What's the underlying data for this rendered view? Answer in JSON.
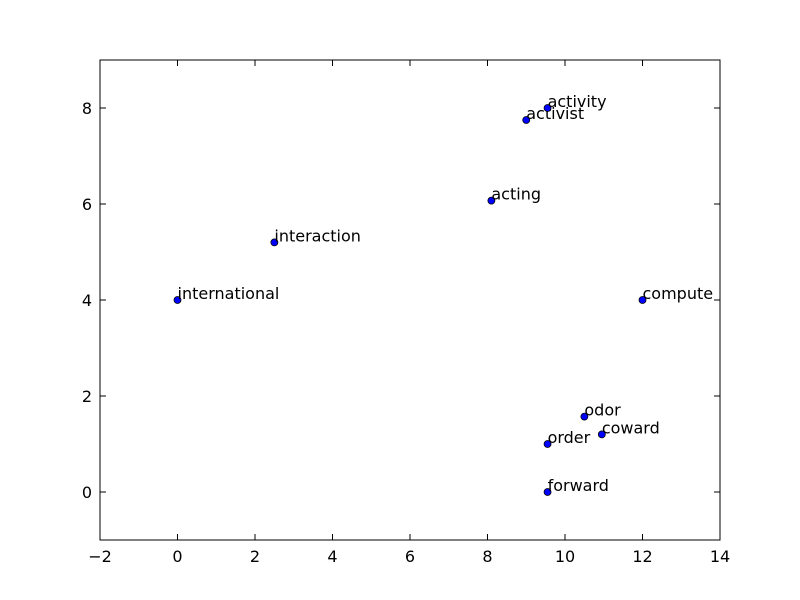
{
  "chart_data": {
    "type": "scatter",
    "title": "",
    "xlabel": "",
    "ylabel": "",
    "xlim": [
      -2,
      14
    ],
    "ylim": [
      -1,
      9
    ],
    "grid": false,
    "legend": "none",
    "marker_color": "#0000ff",
    "x_ticks": [
      -2,
      0,
      2,
      4,
      6,
      8,
      10,
      12,
      14
    ],
    "y_ticks": [
      0,
      2,
      4,
      6,
      8
    ],
    "points": [
      {
        "label": "international",
        "x": 0.0,
        "y": 4.0
      },
      {
        "label": "interaction",
        "x": 2.5,
        "y": 5.2
      },
      {
        "label": "acting",
        "x": 8.1,
        "y": 6.07
      },
      {
        "label": "activist",
        "x": 9.0,
        "y": 7.75
      },
      {
        "label": "activity",
        "x": 9.55,
        "y": 8.0
      },
      {
        "label": "compute",
        "x": 12.0,
        "y": 4.0
      },
      {
        "label": "odor",
        "x": 10.5,
        "y": 1.57
      },
      {
        "label": "coward",
        "x": 10.95,
        "y": 1.2
      },
      {
        "label": "order",
        "x": 9.55,
        "y": 1.0
      },
      {
        "label": "forward",
        "x": 9.55,
        "y": 0.0
      }
    ]
  }
}
